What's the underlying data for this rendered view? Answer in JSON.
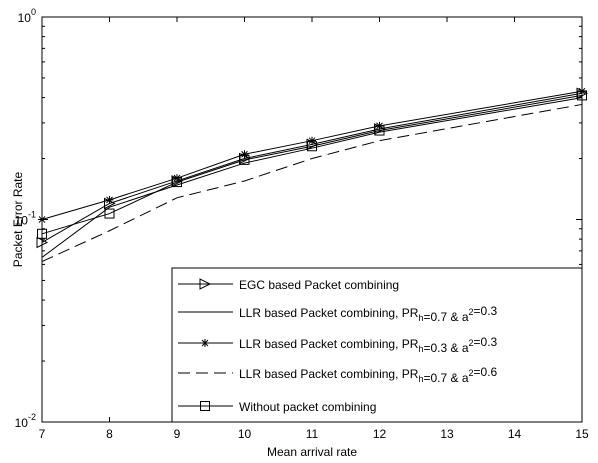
{
  "chart_data": {
    "type": "line",
    "title": "",
    "xlabel": "Mean arrival rate",
    "ylabel": "Packet Error Rate",
    "xlim": [
      7,
      15
    ],
    "ylim": [
      0.01,
      1
    ],
    "yscale": "log",
    "grid": false,
    "legend_position": "bottom-right",
    "x_ticks": [
      7,
      8,
      9,
      10,
      11,
      12,
      13,
      14,
      15
    ],
    "y_ticks": [
      {
        "value": 0.01,
        "base": "10",
        "exp": "-2"
      },
      {
        "value": 0.1,
        "base": "10",
        "exp": "-1"
      },
      {
        "value": 1,
        "base": "10",
        "exp": "0"
      }
    ],
    "x": [
      7,
      8,
      9,
      10,
      11,
      12,
      15
    ],
    "series": [
      {
        "name": "EGC based Packet combining",
        "name_parts": [
          {
            "t": "EGC based Packet combining",
            "s": ""
          }
        ],
        "marker": "triangle-right",
        "dash": "",
        "values": [
          0.077,
          0.12,
          0.155,
          0.2,
          0.235,
          0.28,
          0.42
        ]
      },
      {
        "name": "LLR based Packet combining, PRh=0.7 & a2=0.3",
        "name_parts": [
          {
            "t": "LLR based Packet combining, PR",
            "s": ""
          },
          {
            "t": "h",
            "s": "sub"
          },
          {
            "t": "=0.7 & a",
            "s": ""
          },
          {
            "t": "2",
            "s": "sup"
          },
          {
            "t": "=0.3",
            "s": ""
          }
        ],
        "marker": "none",
        "dash": "",
        "values": [
          0.065,
          0.115,
          0.148,
          0.19,
          0.225,
          0.27,
          0.4
        ]
      },
      {
        "name": "LLR based Packet combining, PRh=0.3 & a2=0.3",
        "name_parts": [
          {
            "t": "LLR based Packet combining, PR",
            "s": ""
          },
          {
            "t": "h",
            "s": "sub"
          },
          {
            "t": "=0.3 & a",
            "s": ""
          },
          {
            "t": "2",
            "s": "sup"
          },
          {
            "t": "=0.3",
            "s": ""
          }
        ],
        "marker": "star",
        "dash": "",
        "values": [
          0.1,
          0.125,
          0.16,
          0.21,
          0.245,
          0.29,
          0.43
        ]
      },
      {
        "name": "LLR based Packet combining, PRh=0.7 & a2=0.6",
        "name_parts": [
          {
            "t": "LLR based Packet combining, PR",
            "s": ""
          },
          {
            "t": "h",
            "s": "sub"
          },
          {
            "t": "=0.7 & a",
            "s": ""
          },
          {
            "t": "2",
            "s": "sup"
          },
          {
            "t": "=0.6",
            "s": ""
          }
        ],
        "marker": "none",
        "dash": "12,6",
        "values": [
          0.062,
          0.088,
          0.128,
          0.155,
          0.2,
          0.245,
          0.37
        ]
      },
      {
        "name": "Without packet combining",
        "name_parts": [
          {
            "t": "Without packet combining",
            "s": ""
          }
        ],
        "marker": "square",
        "dash": "",
        "values": [
          0.085,
          0.107,
          0.153,
          0.197,
          0.23,
          0.275,
          0.41
        ]
      }
    ],
    "colors": {
      "line": "#000000",
      "background": "#ffffff"
    }
  }
}
